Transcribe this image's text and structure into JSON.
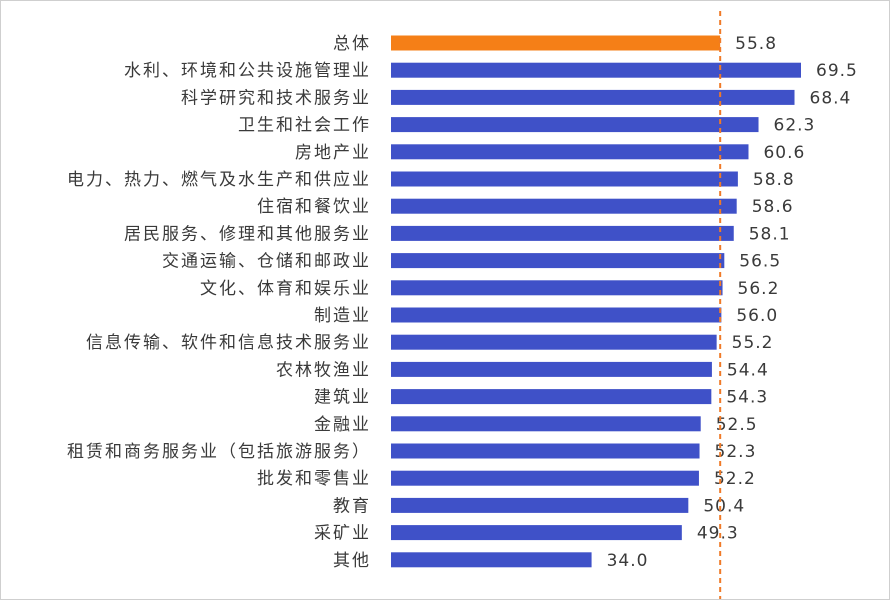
{
  "chart_data": {
    "type": "bar",
    "orientation": "horizontal",
    "categories": [
      "总体",
      "水利、环境和公共设施管理业",
      "科学研究和技术服务业",
      "卫生和社会工作",
      "房地产业",
      "电力、热力、燃气及水生产和供应业",
      "住宿和餐饮业",
      "居民服务、修理和其他服务业",
      "交通运输、仓储和邮政业",
      "文化、体育和娱乐业",
      "制造业",
      "信息传输、软件和信息技术服务业",
      "农林牧渔业",
      "建筑业",
      "金融业",
      "租赁和商务服务业（包括旅游服务）",
      "批发和零售业",
      "教育",
      "采矿业",
      "其他"
    ],
    "values": [
      55.8,
      69.5,
      68.4,
      62.3,
      60.6,
      58.8,
      58.6,
      58.1,
      56.5,
      56.2,
      56.0,
      55.2,
      54.4,
      54.3,
      52.5,
      52.3,
      52.2,
      50.4,
      49.3,
      34.0
    ],
    "value_labels": [
      "55.8",
      "69.5",
      "68.4",
      "62.3",
      "60.6",
      "58.8",
      "58.6",
      "58.1",
      "56.5",
      "56.2",
      "56.0",
      "55.2",
      "54.4",
      "54.3",
      "52.5",
      "52.3",
      "52.2",
      "50.4",
      "49.3",
      "34.0"
    ],
    "reference_line": 55.8,
    "colors": {
      "highlight_bar": "#f57f17",
      "bar": "#3f51c8",
      "reference_line": "#f07a28"
    },
    "grid": false,
    "legend": false
  }
}
